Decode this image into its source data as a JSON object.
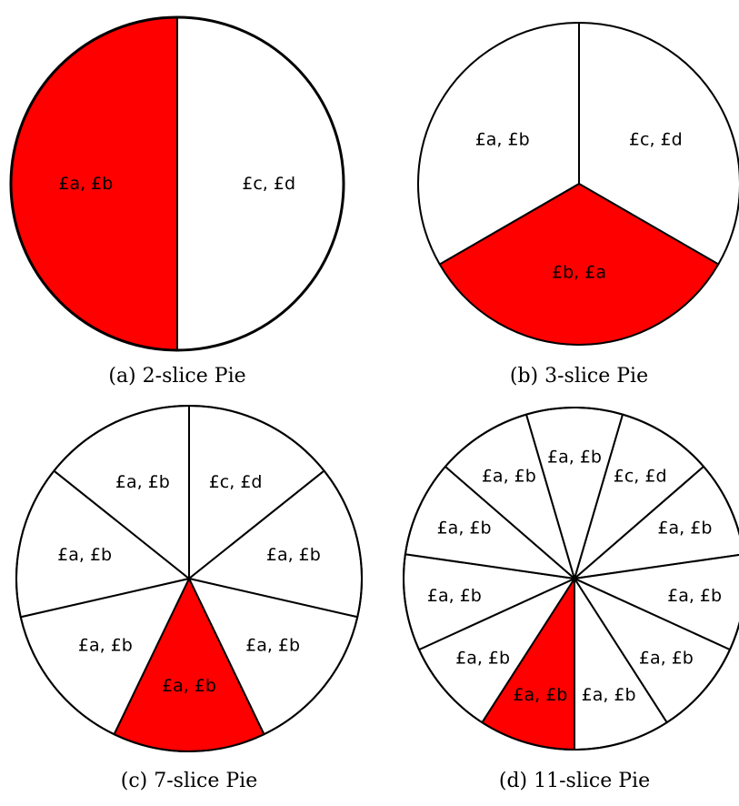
{
  "colors": {
    "highlight": "#ff0000",
    "plain": "#ffffff",
    "stroke": "#000000"
  },
  "panels": [
    {
      "id": "a",
      "caption": "(a) 2-slice Pie",
      "slices": [
        {
          "label": "£c, £d",
          "highlighted": false
        },
        {
          "label": "£a, £b",
          "highlighted": true
        }
      ]
    },
    {
      "id": "b",
      "caption": "(b) 3-slice Pie",
      "slices": [
        {
          "label": "£c, £d",
          "highlighted": false
        },
        {
          "label": "£b, £a",
          "highlighted": true
        },
        {
          "label": "£a, £b",
          "highlighted": false
        }
      ]
    },
    {
      "id": "c",
      "caption": "(c) 7-slice Pie",
      "slices": [
        {
          "label": "£c, £d",
          "highlighted": false
        },
        {
          "label": "£a, £b",
          "highlighted": false
        },
        {
          "label": "£a, £b",
          "highlighted": false
        },
        {
          "label": "£a, £b",
          "highlighted": true
        },
        {
          "label": "£a, £b",
          "highlighted": false
        },
        {
          "label": "£a, £b",
          "highlighted": false
        },
        {
          "label": "£a, £b",
          "highlighted": false
        }
      ]
    },
    {
      "id": "d",
      "caption": "(d) 11-slice Pie",
      "slices": [
        {
          "label": "£c, £d",
          "highlighted": false
        },
        {
          "label": "£a, £b",
          "highlighted": false
        },
        {
          "label": "£a, £b",
          "highlighted": false
        },
        {
          "label": "£a, £b",
          "highlighted": false
        },
        {
          "label": "£a, £b",
          "highlighted": false
        },
        {
          "label": "£a, £b",
          "highlighted": true
        },
        {
          "label": "£a, £b",
          "highlighted": false
        },
        {
          "label": "£a, £b",
          "highlighted": false
        },
        {
          "label": "£a, £b",
          "highlighted": false
        },
        {
          "label": "£a, £b",
          "highlighted": false
        },
        {
          "label": "£a, £b",
          "highlighted": false
        }
      ]
    }
  ]
}
